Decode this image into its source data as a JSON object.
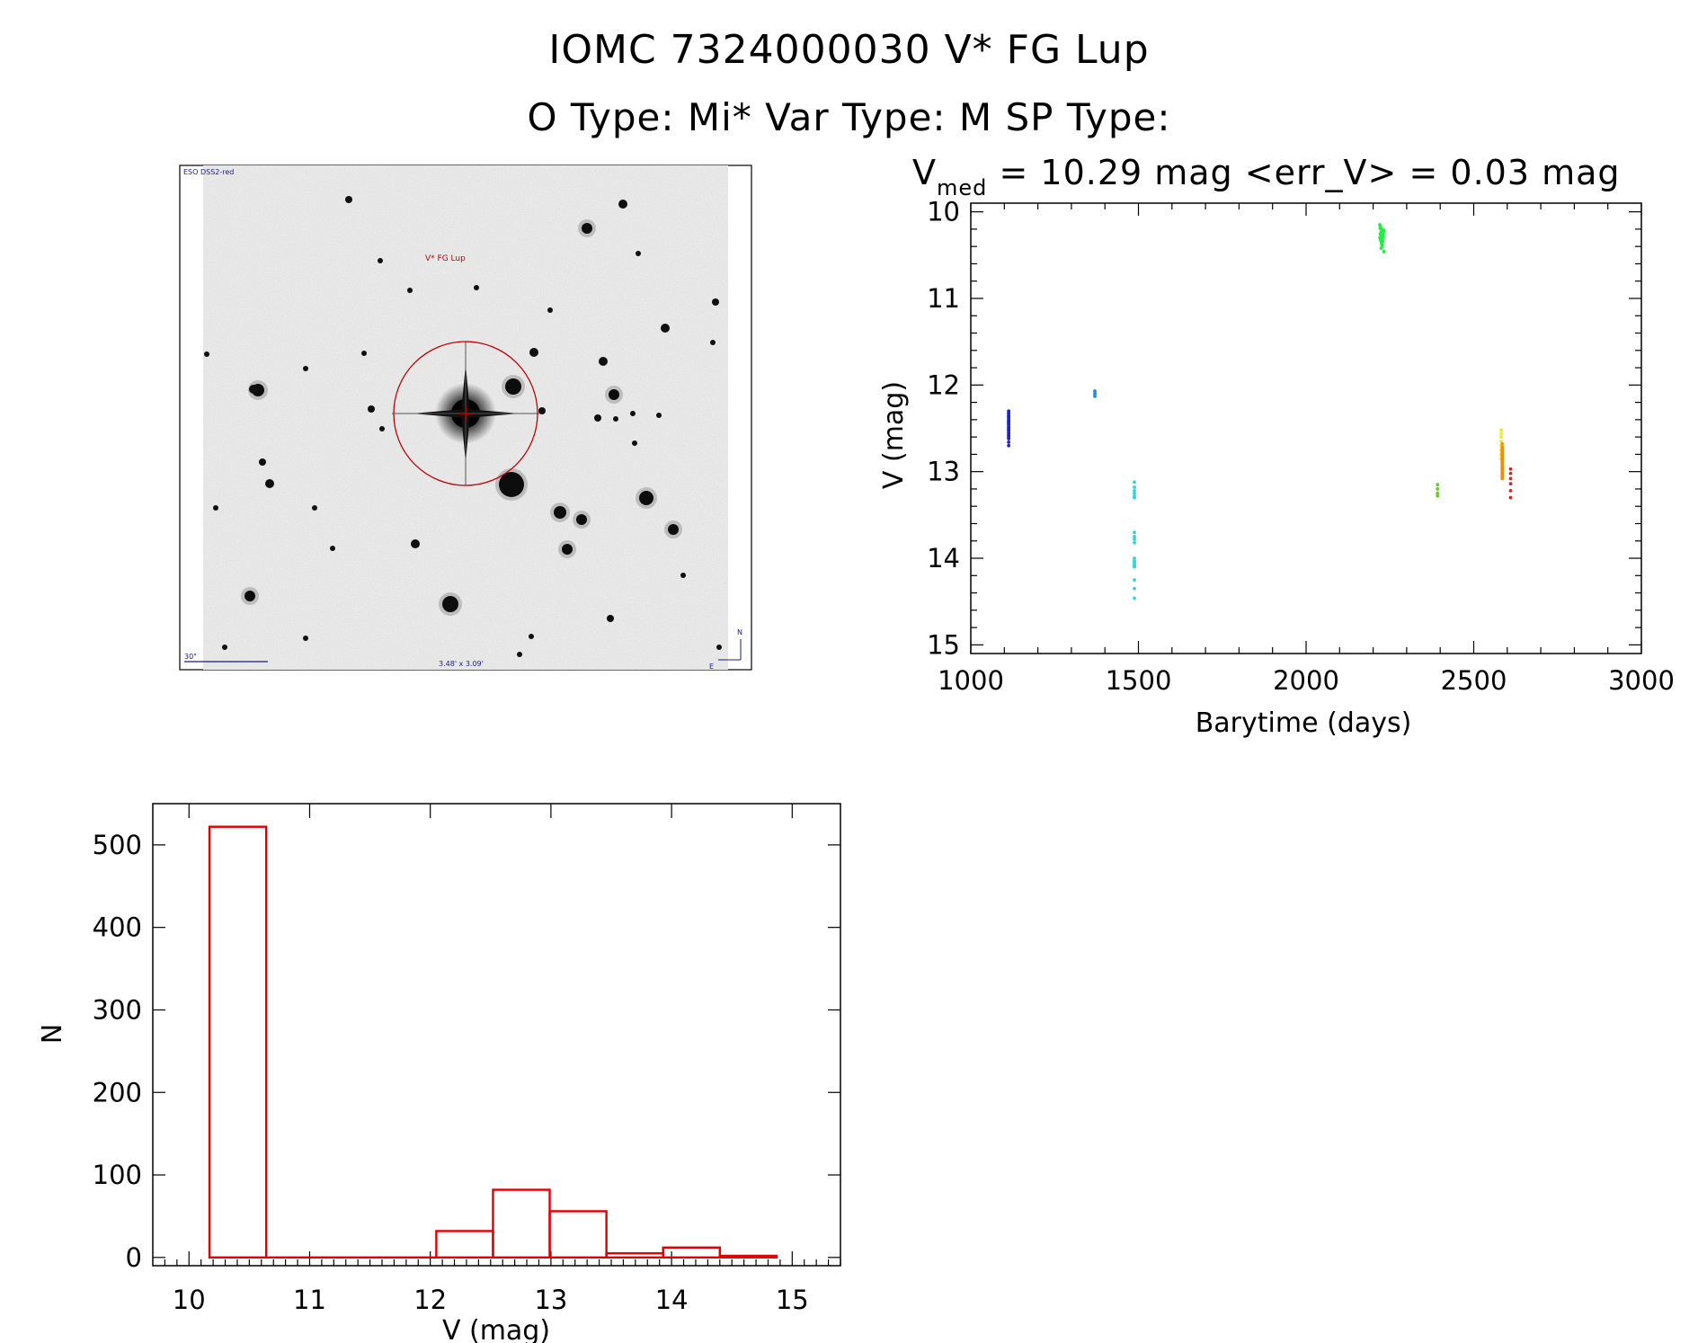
{
  "header": {
    "line1": "IOMC 7324000030    V* FG Lup",
    "line2": "O Type: Mi*  Var Type: M  SP Type:"
  },
  "finder": {
    "corner_label": "ESO DSS2-red",
    "target_label": "V* FG Lup",
    "scale_label": "30\"",
    "size_label": "3.48' x 3.09'",
    "north_label": "N",
    "east_label": "E",
    "circle_color": "#c00000",
    "label_color": "#1a1a8c"
  },
  "chart_data": [
    {
      "type": "scatter",
      "title_base": "V",
      "title_sub": "med",
      "title_rest": " = 10.29 mag <err_V> = 0.03 mag",
      "xlabel": "Barytime (days)",
      "ylabel": "V (mag)",
      "xlim": [
        1000,
        3000
      ],
      "ylim": [
        15.1,
        9.9
      ],
      "y_inverted": true,
      "xticks": [
        1000,
        1500,
        2000,
        2500,
        3000
      ],
      "yticks": [
        10,
        11,
        12,
        13,
        14,
        15
      ],
      "grid": false,
      "series": [
        {
          "color": "#2222cc",
          "x": [
            1113,
            1113,
            1113,
            1113,
            1113,
            1113,
            1113,
            1113,
            1113,
            1113,
            1113,
            1113,
            1113,
            1113,
            1113,
            1113,
            1113,
            1113,
            1113,
            1113,
            1113,
            1113,
            1113,
            1113,
            1113,
            1113,
            1113,
            1113
          ],
          "y": [
            12.3,
            12.33,
            12.36,
            12.38,
            12.4,
            12.42,
            12.44,
            12.46,
            12.48,
            12.5,
            12.52,
            12.55,
            12.58,
            12.62,
            12.66,
            12.7,
            12.32,
            12.37,
            12.41,
            12.45,
            12.49,
            12.53,
            12.57,
            12.61,
            12.35,
            12.43,
            12.51,
            12.59
          ]
        },
        {
          "color": "#1e88e5",
          "x": [
            1370,
            1370,
            1370
          ],
          "y": [
            12.07,
            12.1,
            12.13
          ]
        },
        {
          "color": "#22dddd",
          "x": [
            1488,
            1488,
            1488,
            1488,
            1488,
            1488,
            1488,
            1488,
            1488,
            1488,
            1488,
            1488,
            1488,
            1488,
            1488,
            1488,
            1488,
            1488,
            1488,
            1488
          ],
          "y": [
            13.12,
            13.18,
            13.25,
            13.3,
            13.7,
            13.75,
            13.82,
            14.0,
            14.03,
            14.06,
            14.08,
            14.1,
            14.25,
            14.35,
            14.46,
            13.22,
            13.28,
            13.78,
            14.04,
            14.09
          ]
        },
        {
          "color": "#22ee44",
          "x": [
            2220,
            2222,
            2224,
            2226,
            2228,
            2230,
            2220,
            2222,
            2224,
            2226,
            2228,
            2230,
            2221,
            2223,
            2225,
            2227,
            2229,
            2231,
            2221,
            2223,
            2225,
            2227,
            2229,
            2232,
            2232,
            2222,
            2226,
            2230,
            2224,
            2228
          ],
          "y": [
            10.15,
            10.18,
            10.2,
            10.22,
            10.25,
            10.28,
            10.3,
            10.32,
            10.35,
            10.38,
            10.22,
            10.27,
            10.19,
            10.24,
            10.29,
            10.31,
            10.34,
            10.21,
            10.26,
            10.33,
            10.36,
            10.4,
            10.28,
            10.23,
            10.46,
            10.17,
            10.37,
            10.3,
            10.42,
            10.25
          ]
        },
        {
          "color": "#66cc22",
          "x": [
            2392,
            2392,
            2392,
            2392
          ],
          "y": [
            13.15,
            13.2,
            13.25,
            13.28
          ]
        },
        {
          "color": "#eeee00",
          "x": [
            2582,
            2582,
            2582,
            2582,
            2582,
            2582,
            2582,
            2582
          ],
          "y": [
            12.52,
            12.56,
            12.6,
            12.65,
            12.7,
            12.75,
            12.8,
            12.85
          ]
        },
        {
          "color": "#ff8800",
          "x": [
            2585,
            2585,
            2585,
            2585,
            2585,
            2585,
            2585,
            2585,
            2585,
            2585,
            2585,
            2585,
            2585,
            2585,
            2585,
            2585,
            2585,
            2585,
            2585,
            2585
          ],
          "y": [
            12.68,
            12.72,
            12.76,
            12.8,
            12.84,
            12.88,
            12.92,
            12.96,
            13.0,
            13.04,
            13.08,
            12.74,
            12.82,
            12.9,
            12.98,
            13.06,
            12.78,
            12.86,
            12.94,
            13.02
          ]
        },
        {
          "color": "#dd2222",
          "x": [
            2610,
            2610,
            2610,
            2610,
            2610,
            2610
          ],
          "y": [
            12.97,
            13.02,
            13.08,
            13.14,
            13.22,
            13.3
          ]
        }
      ]
    },
    {
      "type": "bar",
      "xlabel": "V (mag)",
      "ylabel": "N",
      "xlim": [
        9.7,
        15.4
      ],
      "ylim": [
        -10,
        550
      ],
      "xticks": [
        10,
        11,
        12,
        13,
        14,
        15
      ],
      "yticks": [
        0,
        100,
        200,
        300,
        400,
        500
      ],
      "grid": false,
      "bar_color": "#e00000",
      "bins": [
        {
          "x0": 10.17,
          "x1": 10.64,
          "value": 522
        },
        {
          "x0": 10.64,
          "x1": 11.11,
          "value": 0
        },
        {
          "x0": 11.11,
          "x1": 11.58,
          "value": 0
        },
        {
          "x0": 11.58,
          "x1": 12.05,
          "value": 0
        },
        {
          "x0": 12.05,
          "x1": 12.52,
          "value": 32
        },
        {
          "x0": 12.52,
          "x1": 12.99,
          "value": 82
        },
        {
          "x0": 12.99,
          "x1": 13.46,
          "value": 56
        },
        {
          "x0": 13.46,
          "x1": 13.93,
          "value": 5
        },
        {
          "x0": 13.93,
          "x1": 14.4,
          "value": 12
        },
        {
          "x0": 14.4,
          "x1": 14.87,
          "value": 2
        }
      ]
    }
  ]
}
